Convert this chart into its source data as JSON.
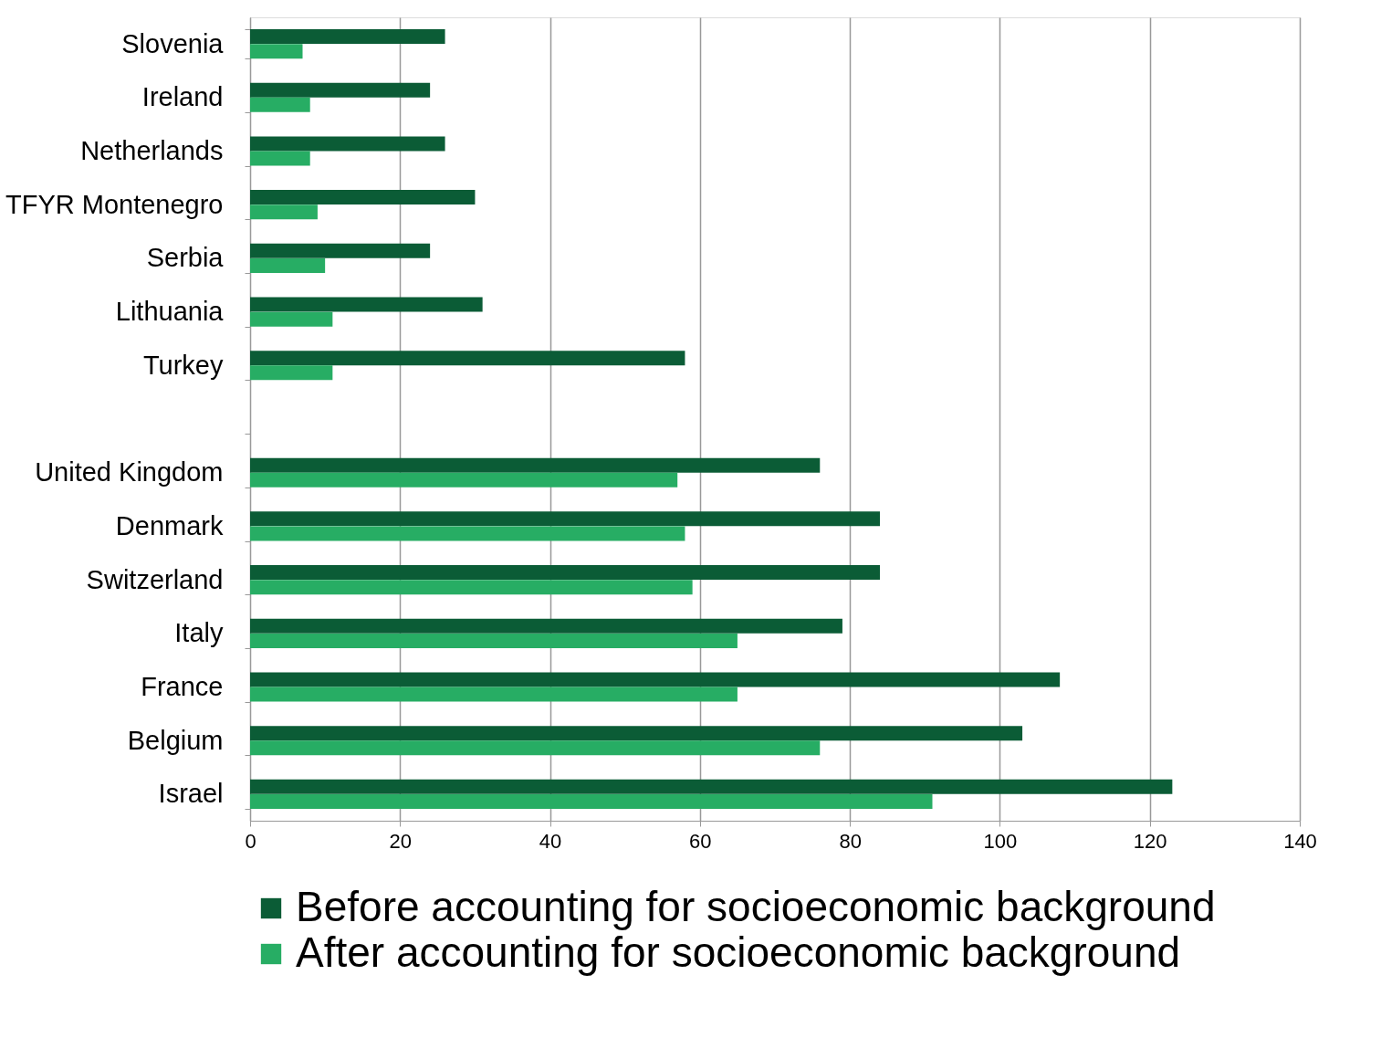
{
  "chart_data": {
    "type": "bar",
    "orientation": "horizontal",
    "categories": [
      "Slovenia",
      "Ireland",
      "Netherlands",
      "TFYR Montenegro",
      "Serbia",
      "Lithuania",
      "Turkey",
      null,
      "United Kingdom",
      "Denmark",
      "Switzerland",
      "Italy",
      "France",
      "Belgium",
      "Israel"
    ],
    "series": [
      {
        "name": "Before accounting for socioeconomic background",
        "color": "#0b5c36",
        "values": [
          26,
          24,
          26,
          30,
          24,
          31,
          58,
          null,
          76,
          84,
          84,
          79,
          108,
          103,
          123
        ]
      },
      {
        "name": "After accounting for socioeconomic background",
        "color": "#27ad64",
        "values": [
          7,
          8,
          8,
          9,
          10,
          11,
          11,
          null,
          57,
          58,
          59,
          65,
          65,
          76,
          91
        ]
      }
    ],
    "xlim": [
      0,
      140
    ],
    "xticks": [
      0,
      20,
      40,
      60,
      80,
      100,
      120,
      140
    ],
    "grid": "x",
    "legend": "bottom"
  }
}
